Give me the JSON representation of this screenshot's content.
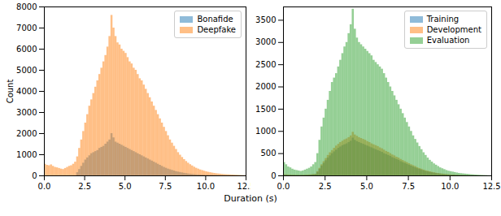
{
  "xlabel": "Duration (s)",
  "chart_data": [
    {
      "type": "histogram",
      "ylabel": "Count",
      "legend": "upper right",
      "xlim": [
        0,
        12.5
      ],
      "xticks": [
        {
          "value": 0,
          "label": "0.0"
        },
        {
          "value": 2.5,
          "label": "2.5"
        },
        {
          "value": 5,
          "label": "5.0"
        },
        {
          "value": 7.5,
          "label": "7.5"
        },
        {
          "value": 10,
          "label": "10.0"
        },
        {
          "value": 12.5,
          "label": "12.5"
        }
      ],
      "ylim": [
        0,
        8000
      ],
      "yticks": [
        0,
        1000,
        2000,
        3000,
        4000,
        5000,
        6000,
        7000,
        8000
      ],
      "bins": [
        0,
        0.125,
        0.25,
        0.375,
        0.5,
        0.625,
        0.75,
        0.875,
        1,
        1.125,
        1.25,
        1.375,
        1.5,
        1.625,
        1.75,
        1.875,
        2,
        2.125,
        2.25,
        2.375,
        2.5,
        2.625,
        2.75,
        2.875,
        3,
        3.125,
        3.25,
        3.375,
        3.5,
        3.625,
        3.75,
        3.875,
        4,
        4.125,
        4.25,
        4.375,
        4.5,
        4.625,
        4.75,
        4.875,
        5,
        5.125,
        5.25,
        5.375,
        5.5,
        5.625,
        5.75,
        5.875,
        6,
        6.125,
        6.25,
        6.375,
        6.5,
        6.625,
        6.75,
        6.875,
        7,
        7.125,
        7.25,
        7.375,
        7.5,
        7.625,
        7.75,
        7.875,
        8,
        8.125,
        8.25,
        8.375,
        8.5,
        8.625,
        8.75,
        8.875,
        9,
        9.125,
        9.25,
        9.375,
        9.5,
        9.625,
        9.75,
        9.875,
        10,
        10.125,
        10.25,
        10.375,
        10.5,
        10.625,
        10.75,
        10.875,
        11,
        11.125,
        11.25,
        11.375,
        11.5,
        11.625,
        11.75,
        11.875,
        12,
        12.125,
        12.25,
        12.375,
        12.5
      ],
      "series": [
        {
          "name": "Bonafide",
          "color": "#1f77b4",
          "values": [
            0,
            0,
            0,
            0,
            0,
            0,
            0,
            0,
            0,
            0,
            0,
            0,
            0,
            0,
            0,
            0,
            150,
            300,
            450,
            600,
            750,
            850,
            950,
            1050,
            1100,
            1150,
            1200,
            1300,
            1350,
            1400,
            1500,
            1600,
            1700,
            2000,
            1800,
            1600,
            1550,
            1500,
            1450,
            1400,
            1350,
            1300,
            1250,
            1200,
            1150,
            1100,
            1050,
            1000,
            950,
            900,
            850,
            800,
            750,
            700,
            650,
            600,
            550,
            500,
            450,
            400,
            360,
            320,
            290,
            260,
            230,
            200,
            180,
            160,
            140,
            120,
            105,
            90,
            80,
            70,
            60,
            50,
            45,
            40,
            35,
            30,
            25,
            22,
            20,
            18,
            15,
            12,
            10,
            8,
            7,
            6,
            5,
            4,
            3,
            3,
            2,
            2,
            1,
            1,
            0,
            0
          ]
        },
        {
          "name": "Deepfake",
          "color": "#ff7f0e",
          "values": [
            550,
            500,
            480,
            520,
            450,
            400,
            380,
            350,
            320,
            300,
            350,
            400,
            450,
            480,
            550,
            650,
            900,
            1300,
            1700,
            2100,
            2500,
            2900,
            3300,
            3600,
            3900,
            4200,
            4500,
            4800,
            5100,
            5400,
            5700,
            6100,
            6600,
            7600,
            7000,
            6600,
            6300,
            6200,
            6000,
            5900,
            5800,
            5600,
            5400,
            5300,
            5100,
            5000,
            4800,
            4600,
            4500,
            4300,
            4100,
            3900,
            3700,
            3500,
            3300,
            3100,
            2900,
            2700,
            2500,
            2300,
            2100,
            1900,
            1700,
            1550,
            1400,
            1250,
            1100,
            980,
            870,
            770,
            680,
            600,
            530,
            470,
            410,
            360,
            320,
            280,
            250,
            220,
            190,
            170,
            150,
            130,
            115,
            100,
            90,
            80,
            70,
            60,
            55,
            50,
            45,
            40,
            35,
            30,
            25,
            20,
            15,
            10
          ]
        }
      ]
    },
    {
      "type": "histogram",
      "legend": "upper right",
      "xlim": [
        0,
        12.5
      ],
      "xticks": [
        {
          "value": 0,
          "label": "0.0"
        },
        {
          "value": 2.5,
          "label": "2.5"
        },
        {
          "value": 5,
          "label": "5.0"
        },
        {
          "value": 7.5,
          "label": "7.5"
        },
        {
          "value": 10,
          "label": "10.0"
        },
        {
          "value": 12.5,
          "label": "12.5"
        }
      ],
      "ylim": [
        0,
        3800
      ],
      "yticks": [
        0,
        500,
        1000,
        1500,
        2000,
        2500,
        3000,
        3500
      ],
      "bins": [
        0,
        0.125,
        0.25,
        0.375,
        0.5,
        0.625,
        0.75,
        0.875,
        1,
        1.125,
        1.25,
        1.375,
        1.5,
        1.625,
        1.75,
        1.875,
        2,
        2.125,
        2.25,
        2.375,
        2.5,
        2.625,
        2.75,
        2.875,
        3,
        3.125,
        3.25,
        3.375,
        3.5,
        3.625,
        3.75,
        3.875,
        4,
        4.125,
        4.25,
        4.375,
        4.5,
        4.625,
        4.75,
        4.875,
        5,
        5.125,
        5.25,
        5.375,
        5.5,
        5.625,
        5.75,
        5.875,
        6,
        6.125,
        6.25,
        6.375,
        6.5,
        6.625,
        6.75,
        6.875,
        7,
        7.125,
        7.25,
        7.375,
        7.5,
        7.625,
        7.75,
        7.875,
        8,
        8.125,
        8.25,
        8.375,
        8.5,
        8.625,
        8.75,
        8.875,
        9,
        9.125,
        9.25,
        9.375,
        9.5,
        9.625,
        9.75,
        9.875,
        10,
        10.125,
        10.25,
        10.375,
        10.5,
        10.625,
        10.75,
        10.875,
        11,
        11.125,
        11.25,
        11.375,
        11.5,
        11.625,
        11.75,
        11.875,
        12,
        12.125,
        12.25,
        12.375,
        12.5
      ],
      "series": [
        {
          "name": "Training",
          "color": "#1f77b4",
          "values": [
            20,
            20,
            15,
            15,
            12,
            12,
            10,
            10,
            10,
            10,
            12,
            15,
            18,
            20,
            25,
            30,
            80,
            150,
            220,
            280,
            340,
            400,
            450,
            500,
            540,
            580,
            620,
            650,
            680,
            700,
            720,
            750,
            780,
            850,
            800,
            770,
            750,
            730,
            710,
            690,
            670,
            650,
            630,
            610,
            590,
            570,
            550,
            530,
            500,
            480,
            460,
            440,
            410,
            390,
            370,
            350,
            320,
            300,
            280,
            260,
            240,
            220,
            200,
            180,
            160,
            145,
            130,
            115,
            100,
            90,
            80,
            70,
            60,
            52,
            45,
            40,
            35,
            30,
            26,
            22,
            19,
            16,
            14,
            12,
            10,
            9,
            8,
            7,
            6,
            5,
            4,
            3,
            3,
            2,
            2,
            1,
            1,
            1,
            0,
            0
          ]
        },
        {
          "name": "Development",
          "color": "#ff7f0e",
          "values": [
            25,
            22,
            18,
            16,
            14,
            13,
            12,
            11,
            11,
            12,
            14,
            17,
            20,
            24,
            30,
            35,
            95,
            170,
            250,
            320,
            390,
            460,
            520,
            570,
            620,
            670,
            710,
            750,
            780,
            810,
            830,
            860,
            900,
            980,
            920,
            890,
            860,
            840,
            820,
            800,
            770,
            750,
            720,
            700,
            680,
            660,
            630,
            610,
            580,
            550,
            530,
            500,
            470,
            450,
            420,
            400,
            370,
            345,
            320,
            300,
            275,
            250,
            230,
            210,
            185,
            165,
            150,
            130,
            115,
            105,
            92,
            80,
            70,
            60,
            52,
            46,
            40,
            35,
            30,
            25,
            22,
            19,
            16,
            14,
            12,
            10,
            9,
            8,
            7,
            6,
            5,
            4,
            3,
            3,
            2,
            2,
            1,
            1,
            0,
            0
          ]
        },
        {
          "name": "Evaluation",
          "color": "#2ca02c",
          "values": [
            300,
            250,
            200,
            180,
            150,
            130,
            120,
            110,
            100,
            110,
            130,
            150,
            170,
            200,
            250,
            300,
            500,
            800,
            1100,
            1300,
            1500,
            1700,
            1900,
            2100,
            2200,
            2300,
            2450,
            2600,
            2750,
            2900,
            3000,
            3200,
            3400,
            3750,
            3300,
            3100,
            3000,
            2950,
            2900,
            2850,
            2800,
            2750,
            2700,
            2600,
            2550,
            2500,
            2450,
            2400,
            2300,
            2200,
            2100,
            2000,
            1900,
            1800,
            1700,
            1600,
            1500,
            1400,
            1300,
            1200,
            1100,
            1000,
            900,
            820,
            740,
            660,
            590,
            520,
            460,
            400,
            350,
            310,
            270,
            240,
            210,
            180,
            160,
            140,
            120,
            105,
            95,
            85,
            75,
            65,
            55,
            50,
            45,
            40,
            35,
            30,
            25,
            22,
            18,
            15,
            12,
            10,
            8,
            6,
            4,
            2
          ]
        }
      ]
    }
  ]
}
